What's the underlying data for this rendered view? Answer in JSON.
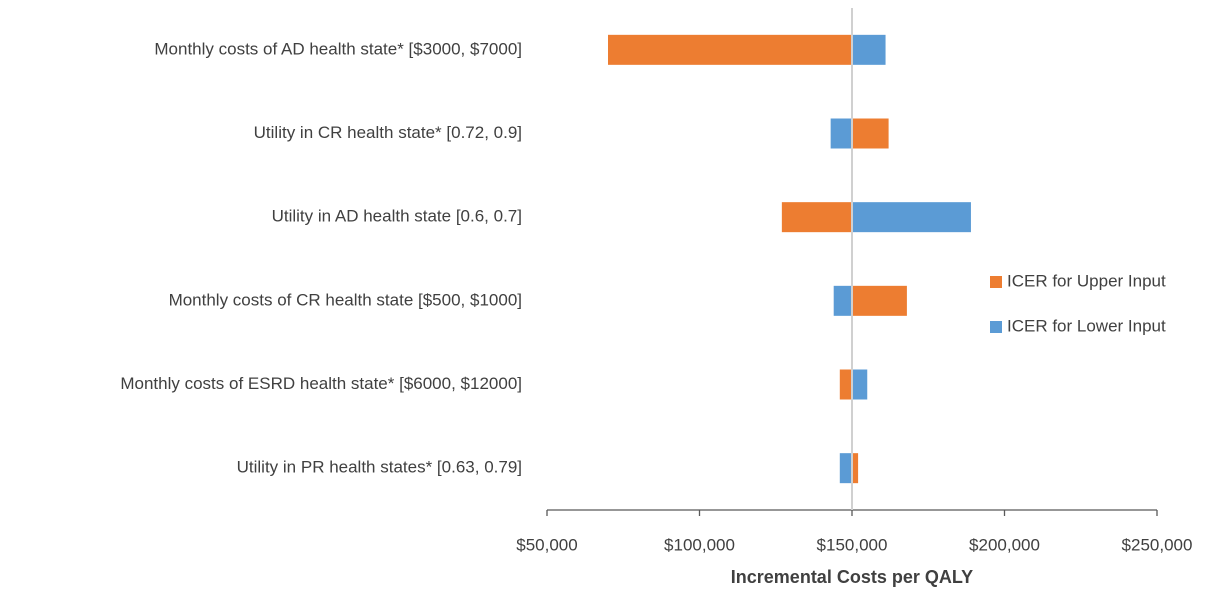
{
  "chart_data": {
    "type": "tornado",
    "categories": [
      "Monthly costs of AD health state* [$3000, $7000]",
      "Utility in CR health state* [0.72, 0.9]",
      "Utility in AD health state [0.6, 0.7]",
      "Monthly costs of CR health state [$500, $1000]",
      "Monthly costs of ESRD health state* [$6000, $12000]",
      "Utility in PR health states* [0.63, 0.79]"
    ],
    "base": 150000,
    "series": [
      {
        "name": "ICER for Upper Input",
        "color": "#ed7d31",
        "values": [
          70000,
          162000,
          127000,
          168000,
          146000,
          152000
        ]
      },
      {
        "name": "ICER for Lower Input",
        "color": "#5b9bd5",
        "values": [
          161000,
          143000,
          189000,
          144000,
          155000,
          146000
        ]
      }
    ],
    "xlim": [
      50000,
      250000
    ],
    "xticks": [
      {
        "value": 50000,
        "label": "$50,000"
      },
      {
        "value": 100000,
        "label": "$100,000"
      },
      {
        "value": 150000,
        "label": "$150,000"
      },
      {
        "value": 200000,
        "label": "$200,000"
      },
      {
        "value": 250000,
        "label": "$250,000"
      }
    ],
    "xlabel": "Incremental Costs per QALY",
    "legend": "right"
  }
}
